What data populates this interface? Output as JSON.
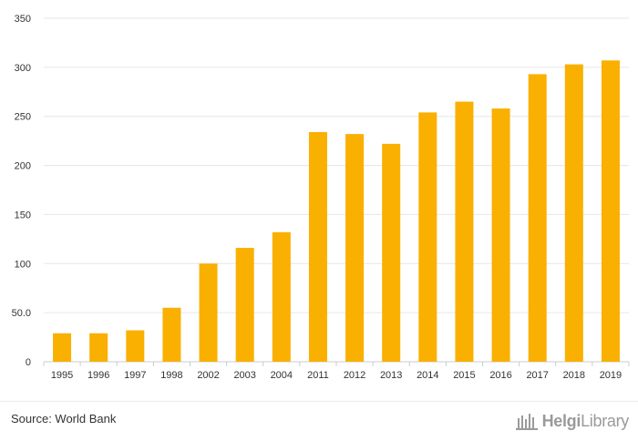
{
  "chart_data": {
    "type": "bar",
    "categories": [
      "1995",
      "1996",
      "1997",
      "1998",
      "2002",
      "2003",
      "2004",
      "2011",
      "2012",
      "2013",
      "2014",
      "2015",
      "2016",
      "2017",
      "2018",
      "2019"
    ],
    "values": [
      29,
      29,
      32,
      55,
      100,
      116,
      132,
      234,
      232,
      222,
      254,
      265,
      258,
      293,
      303,
      307
    ],
    "ylim": [
      0,
      350
    ],
    "yticks": [
      0,
      50,
      100,
      150,
      200,
      250,
      300,
      350
    ],
    "ytick_labels": [
      "0",
      "50.0",
      "100",
      "150",
      "200",
      "250",
      "300",
      "350"
    ],
    "grid": true,
    "colors": {
      "bar": "#F9B000",
      "grid": "#e6e6e6",
      "axis": "#cccccc",
      "text": "#333333"
    }
  },
  "footer": {
    "source": "Source: World Bank",
    "brand_prefix": "Helgi",
    "brand_suffix": "Library"
  }
}
